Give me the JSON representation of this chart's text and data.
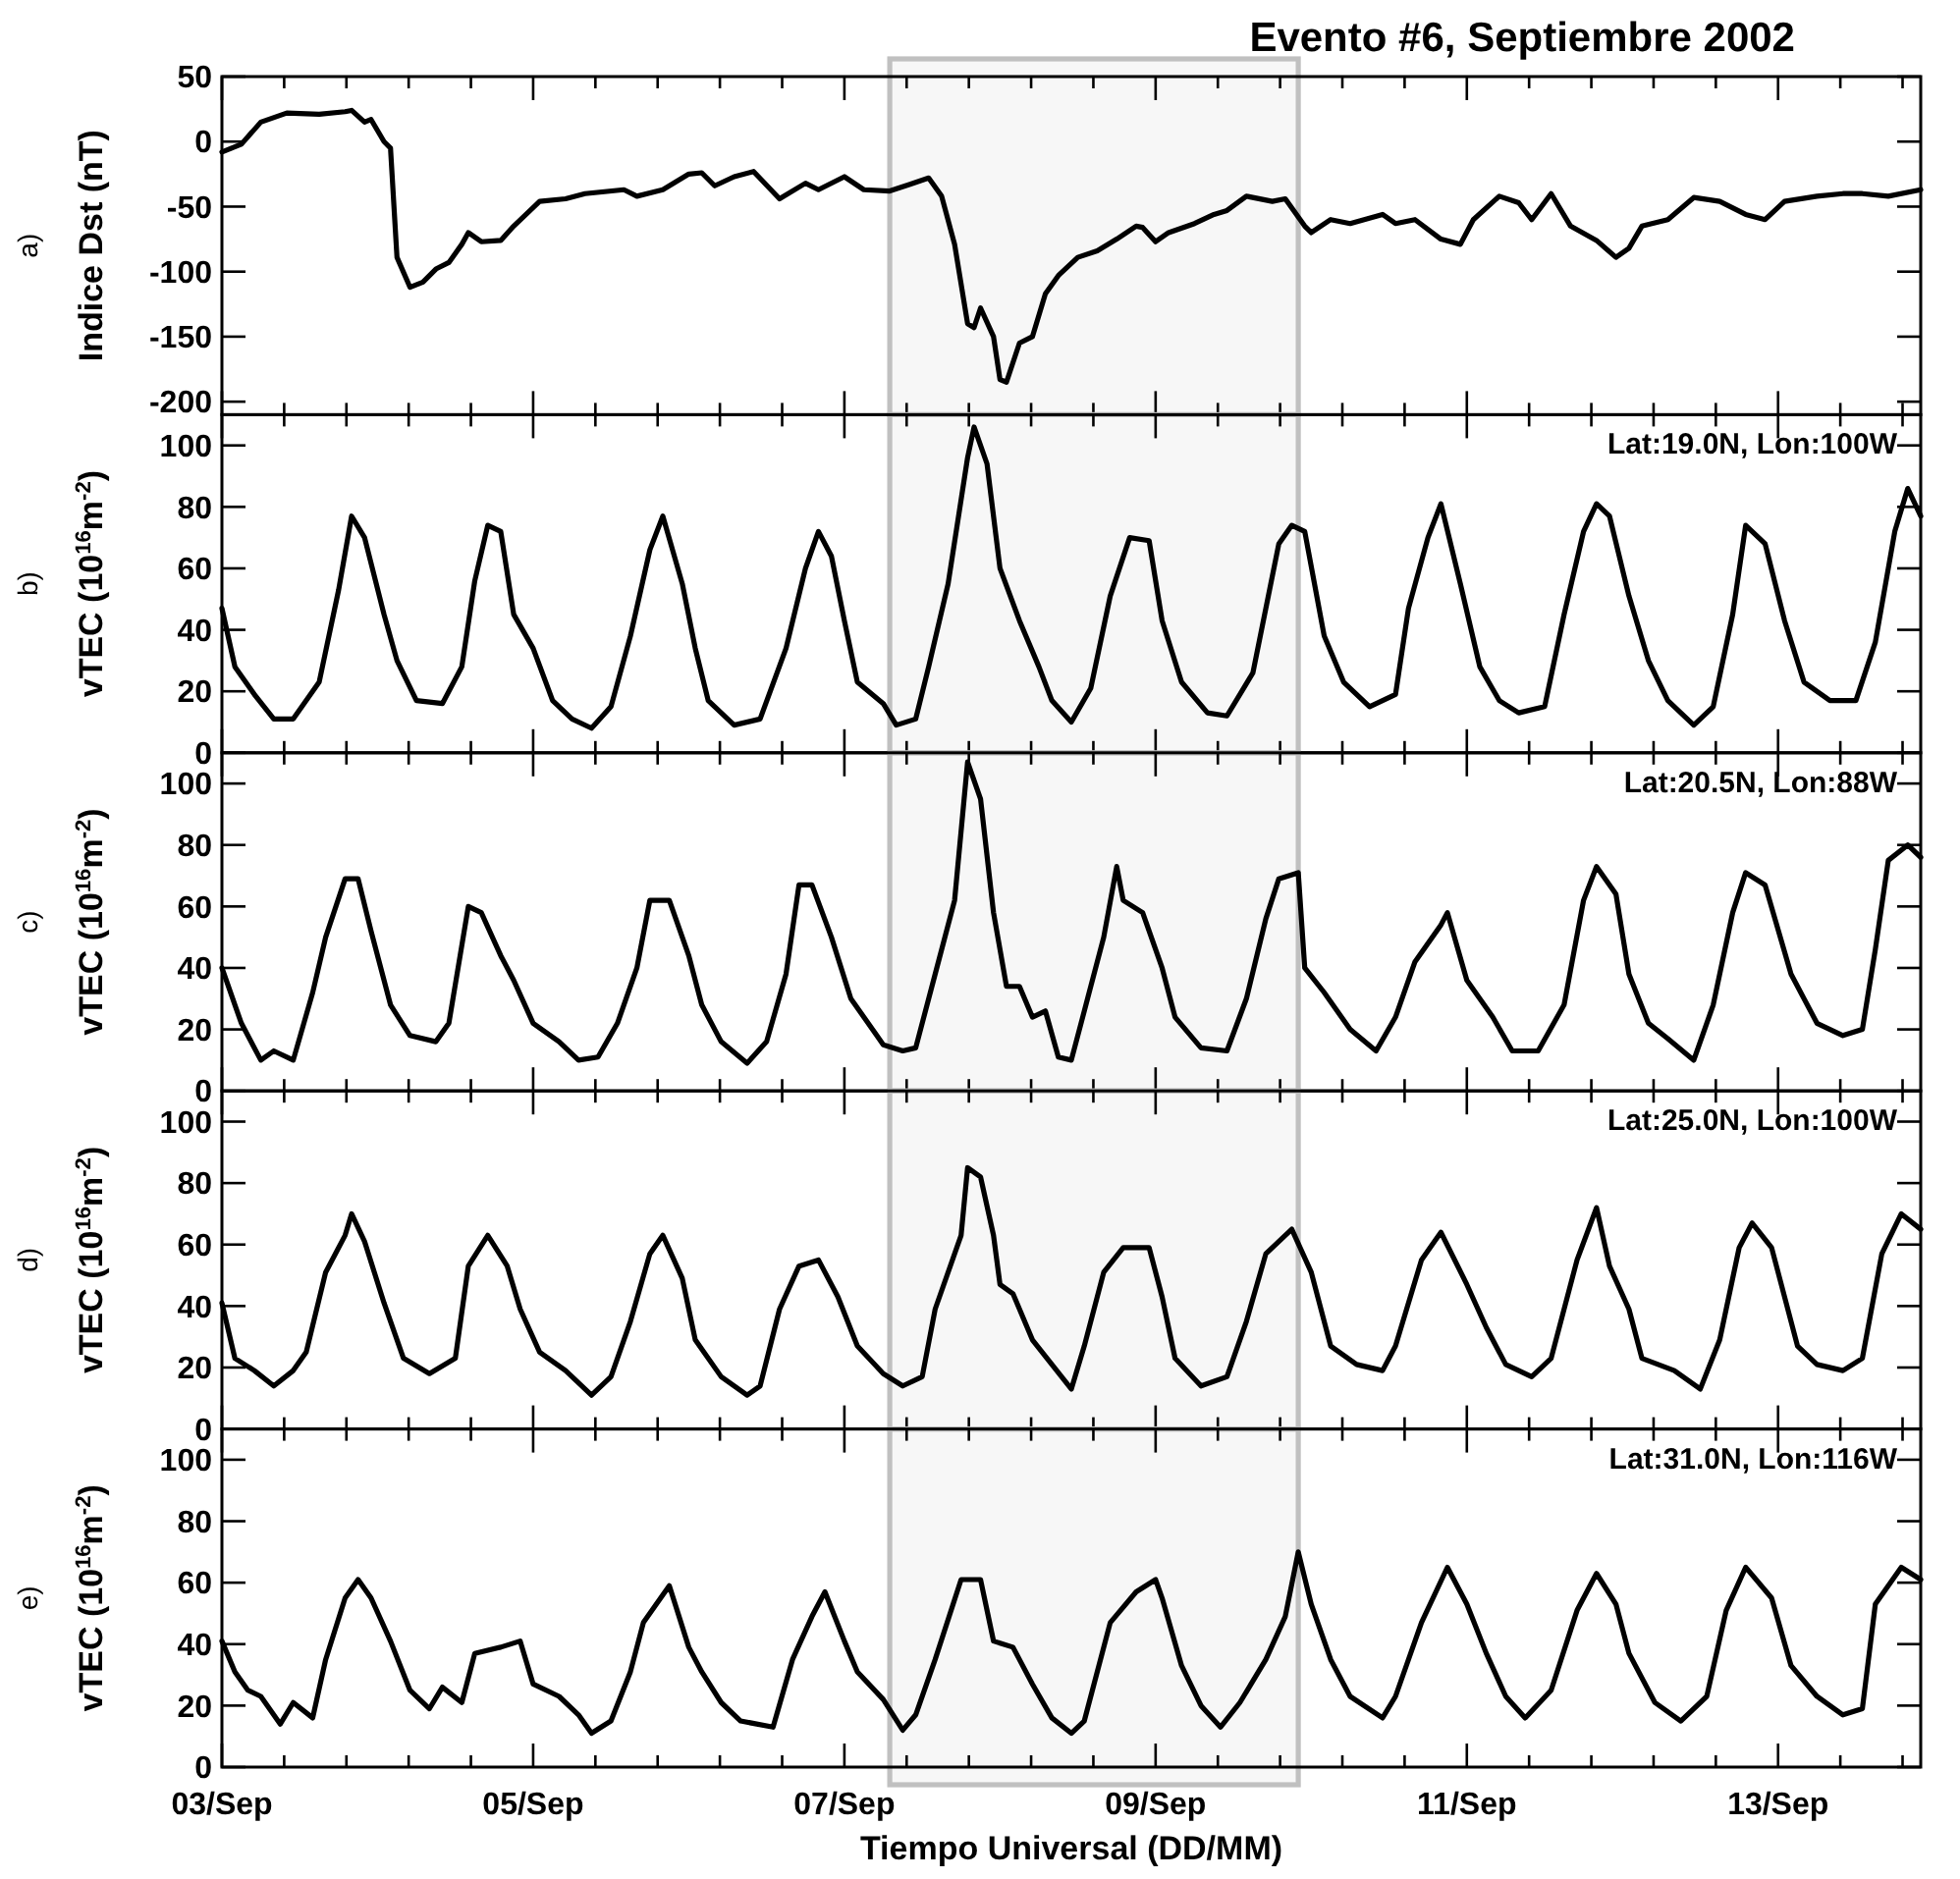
{
  "chart_data": [
    {
      "type": "line",
      "title": "Evento #6, Septiembre 2002",
      "ylabel": "Indice Dst (nT)",
      "annotations": [
        "a)"
      ],
      "tick_labels": "y",
      "xlim": [
        "2002-09-03T00:00",
        "2002-09-13T22:00"
      ],
      "ylim": [
        -210,
        50
      ],
      "yticks": [
        -200,
        -150,
        -100,
        -50,
        0,
        50
      ],
      "xticks": [
        {
          "value": "2002-09-03T00:00",
          "label": null
        },
        {
          "value": "2002-09-03T09:36",
          "label": null
        },
        {
          "value": "2002-09-03T19:12",
          "label": null
        },
        {
          "value": "2002-09-04T04:48",
          "label": null
        },
        {
          "value": "2002-09-04T14:24",
          "label": null
        },
        {
          "value": "2002-09-05T00:00",
          "label": null
        },
        {
          "value": "2002-09-05T09:36",
          "label": null
        },
        {
          "value": "2002-09-05T19:12",
          "label": null
        },
        {
          "value": "2002-09-06T04:48",
          "label": null
        },
        {
          "value": "2002-09-06T14:24",
          "label": null
        },
        {
          "value": "2002-09-07T00:00",
          "label": null
        },
        {
          "value": "2002-09-07T09:36",
          "label": null
        },
        {
          "value": "2002-09-07T19:12",
          "label": null
        },
        {
          "value": "2002-09-08T04:48",
          "label": null
        },
        {
          "value": "2002-09-08T14:24",
          "label": null
        },
        {
          "value": "2002-09-09T00:00",
          "label": null
        },
        {
          "value": "2002-09-09T09:36",
          "label": null
        },
        {
          "value": "2002-09-09T19:12",
          "label": null
        },
        {
          "value": "2002-09-10T04:48",
          "label": null
        },
        {
          "value": "2002-09-10T14:24",
          "label": null
        },
        {
          "value": "2002-09-11T00:00",
          "label": null
        },
        {
          "value": "2002-09-11T09:36",
          "label": null
        },
        {
          "value": "2002-09-11T19:12",
          "label": null
        },
        {
          "value": "2002-09-12T04:48",
          "label": null
        },
        {
          "value": "2002-09-12T14:24",
          "label": null
        },
        {
          "value": "2002-09-13T00:00",
          "label": null
        },
        {
          "value": "2002-09-13T09:36",
          "label": null
        },
        {
          "value": "2002-09-13T19:12",
          "label": null
        }
      ],
      "bands": [
        {
          "axis": "x",
          "from": "2002-09-07T07:00",
          "to": "2002-09-09T22:00",
          "color": "#c0c0c0"
        }
      ],
      "series": [
        {
          "color": "#000000",
          "x": [
            "2002-09-03T00:00",
            "2002-09-03T03:00",
            "2002-09-03T06:00",
            "2002-09-03T10:00",
            "2002-09-03T15:00",
            "2002-09-03T19:00",
            "2002-09-03T20:00",
            "2002-09-03T22:00",
            "2002-09-03T23:00",
            "2002-09-04T01:00",
            "2002-09-04T02:00",
            "2002-09-04T03:00",
            "2002-09-04T05:00",
            "2002-09-04T07:00",
            "2002-09-04T09:00",
            "2002-09-04T11:00",
            "2002-09-04T13:00",
            "2002-09-04T14:00",
            "2002-09-04T16:00",
            "2002-09-04T19:00",
            "2002-09-04T21:00",
            "2002-09-05T01:00",
            "2002-09-05T05:00",
            "2002-09-05T08:00",
            "2002-09-05T14:00",
            "2002-09-05T16:00",
            "2002-09-05T20:00",
            "2002-09-06T00:00",
            "2002-09-06T02:00",
            "2002-09-06T04:00",
            "2002-09-06T07:00",
            "2002-09-06T10:00",
            "2002-09-06T14:00",
            "2002-09-06T18:00",
            "2002-09-06T20:00",
            "2002-09-07T00:00",
            "2002-09-07T03:00",
            "2002-09-07T07:00",
            "2002-09-07T10:00",
            "2002-09-07T13:00",
            "2002-09-07T15:00",
            "2002-09-07T17:00",
            "2002-09-07T19:00",
            "2002-09-07T20:00",
            "2002-09-07T21:00",
            "2002-09-07T23:00",
            "2002-09-08T00:00",
            "2002-09-08T01:00",
            "2002-09-08T03:00",
            "2002-09-08T05:00",
            "2002-09-08T07:00",
            "2002-09-08T09:00",
            "2002-09-08T12:00",
            "2002-09-08T15:00",
            "2002-09-08T18:00",
            "2002-09-08T21:00",
            "2002-09-08T22:00",
            "2002-09-09T00:00",
            "2002-09-09T02:00",
            "2002-09-09T06:00",
            "2002-09-09T09:00",
            "2002-09-09T11:00",
            "2002-09-09T14:00",
            "2002-09-09T18:00",
            "2002-09-09T20:00",
            "2002-09-09T23:00",
            "2002-09-10T00:00",
            "2002-09-10T03:00",
            "2002-09-10T06:00",
            "2002-09-10T11:00",
            "2002-09-10T13:00",
            "2002-09-10T16:00",
            "2002-09-10T20:00",
            "2002-09-10T23:00",
            "2002-09-11T01:00",
            "2002-09-11T05:00",
            "2002-09-11T08:00",
            "2002-09-11T10:00",
            "2002-09-11T13:00",
            "2002-09-11T16:00",
            "2002-09-11T20:00",
            "2002-09-11T23:00",
            "2002-09-12T01:00",
            "2002-09-12T03:00",
            "2002-09-12T07:00",
            "2002-09-12T11:00",
            "2002-09-12T15:00",
            "2002-09-12T19:00",
            "2002-09-12T22:00",
            "2002-09-13T01:00",
            "2002-09-13T06:00",
            "2002-09-13T10:00",
            "2002-09-13T13:00",
            "2002-09-13T17:00",
            "2002-09-13T22:00"
          ],
          "values": [
            -8,
            -2,
            15,
            22,
            21,
            23,
            24,
            15,
            17,
            0,
            -5,
            -89,
            -112,
            -108,
            -98,
            -93,
            -79,
            -70,
            -77,
            -76,
            -65,
            -46,
            -44,
            -40,
            -37,
            -42,
            -37,
            -25,
            -24,
            -34,
            -27,
            -23,
            -44,
            -32,
            -37,
            -27,
            -37,
            -38,
            -33,
            -28,
            -42,
            -79,
            -140,
            -143,
            -128,
            -150,
            -183,
            -185,
            -155,
            -150,
            -117,
            -103,
            -89,
            -84,
            -75,
            -65,
            -66,
            -77,
            -70,
            -63,
            -56,
            -53,
            -42,
            -46,
            -44,
            -65,
            -70,
            -60,
            -63,
            -56,
            -63,
            -60,
            -75,
            -79,
            -60,
            -42,
            -47,
            -60,
            -40,
            -65,
            -76,
            -89,
            -82,
            -65,
            -60,
            -43,
            -46,
            -56,
            -60,
            -46,
            -42,
            -40,
            -40,
            -42,
            -37
          ]
        }
      ]
    },
    {
      "type": "line",
      "ylabel": "vTEC (10$^{16}$m$^{-2}$)",
      "annotations": [
        "b)",
        "Lat:19.0N, Lon:100W"
      ],
      "tick_labels": "y",
      "xlim": [
        "2002-09-03T00:00",
        "2002-09-13T22:00"
      ],
      "ylim": [
        0,
        110
      ],
      "yticks": [
        0,
        20,
        40,
        60,
        80,
        100
      ],
      "xticks": [
        {
          "value": "2002-09-03T00:00",
          "label": null
        },
        {
          "value": "2002-09-03T09:36",
          "label": null
        },
        {
          "value": "2002-09-03T19:12",
          "label": null
        },
        {
          "value": "2002-09-04T04:48",
          "label": null
        },
        {
          "value": "2002-09-04T14:24",
          "label": null
        },
        {
          "value": "2002-09-05T00:00",
          "label": null
        },
        {
          "value": "2002-09-05T09:36",
          "label": null
        },
        {
          "value": "2002-09-05T19:12",
          "label": null
        },
        {
          "value": "2002-09-06T04:48",
          "label": null
        },
        {
          "value": "2002-09-06T14:24",
          "label": null
        },
        {
          "value": "2002-09-07T00:00",
          "label": null
        },
        {
          "value": "2002-09-07T09:36",
          "label": null
        },
        {
          "value": "2002-09-07T19:12",
          "label": null
        },
        {
          "value": "2002-09-08T04:48",
          "label": null
        },
        {
          "value": "2002-09-08T14:24",
          "label": null
        },
        {
          "value": "2002-09-09T00:00",
          "label": null
        },
        {
          "value": "2002-09-09T09:36",
          "label": null
        },
        {
          "value": "2002-09-09T19:12",
          "label": null
        },
        {
          "value": "2002-09-10T04:48",
          "label": null
        },
        {
          "value": "2002-09-10T14:24",
          "label": null
        },
        {
          "value": "2002-09-11T00:00",
          "label": null
        },
        {
          "value": "2002-09-11T09:36",
          "label": null
        },
        {
          "value": "2002-09-11T19:12",
          "label": null
        },
        {
          "value": "2002-09-12T04:48",
          "label": null
        },
        {
          "value": "2002-09-12T14:24",
          "label": null
        },
        {
          "value": "2002-09-13T00:00",
          "label": null
        },
        {
          "value": "2002-09-13T09:36",
          "label": null
        },
        {
          "value": "2002-09-13T19:12",
          "label": null
        }
      ],
      "bands": [
        {
          "axis": "x",
          "from": "2002-09-07T07:00",
          "to": "2002-09-09T22:00",
          "color": "#c0c0c0"
        }
      ],
      "series": [
        {
          "color": "#000000",
          "x": [
            "2002-09-03T00:00",
            "2002-09-03T02:00",
            "2002-09-03T05:00",
            "2002-09-03T08:00",
            "2002-09-03T11:00",
            "2002-09-03T15:00",
            "2002-09-03T18:00",
            "2002-09-03T20:00",
            "2002-09-03T22:00",
            "2002-09-04T01:00",
            "2002-09-04T03:00",
            "2002-09-04T06:00",
            "2002-09-04T10:00",
            "2002-09-04T13:00",
            "2002-09-04T15:00",
            "2002-09-04T17:00",
            "2002-09-04T19:00",
            "2002-09-04T21:00",
            "2002-09-05T00:00",
            "2002-09-05T03:00",
            "2002-09-05T06:00",
            "2002-09-05T09:00",
            "2002-09-05T12:00",
            "2002-09-05T15:00",
            "2002-09-05T18:00",
            "2002-09-05T20:00",
            "2002-09-05T23:00",
            "2002-09-06T01:00",
            "2002-09-06T03:00",
            "2002-09-06T07:00",
            "2002-09-06T11:00",
            "2002-09-06T15:00",
            "2002-09-06T18:00",
            "2002-09-06T20:00",
            "2002-09-06T22:00",
            "2002-09-07T00:00",
            "2002-09-07T02:00",
            "2002-09-07T06:00",
            "2002-09-07T08:00",
            "2002-09-07T11:00",
            "2002-09-07T13:00",
            "2002-09-07T16:00",
            "2002-09-07T19:00",
            "2002-09-07T20:00",
            "2002-09-07T22:00",
            "2002-09-08T00:00",
            "2002-09-08T03:00",
            "2002-09-08T06:00",
            "2002-09-08T08:00",
            "2002-09-08T11:00",
            "2002-09-08T14:00",
            "2002-09-08T17:00",
            "2002-09-08T20:00",
            "2002-09-08T23:00",
            "2002-09-09T01:00",
            "2002-09-09T04:00",
            "2002-09-09T08:00",
            "2002-09-09T11:00",
            "2002-09-09T15:00",
            "2002-09-09T19:00",
            "2002-09-09T21:00",
            "2002-09-09T23:00",
            "2002-09-10T02:00",
            "2002-09-10T05:00",
            "2002-09-10T09:00",
            "2002-09-10T13:00",
            "2002-09-10T15:00",
            "2002-09-10T18:00",
            "2002-09-10T20:00",
            "2002-09-10T23:00",
            "2002-09-11T02:00",
            "2002-09-11T05:00",
            "2002-09-11T08:00",
            "2002-09-11T12:00",
            "2002-09-11T15:00",
            "2002-09-11T18:00",
            "2002-09-11T20:00",
            "2002-09-11T22:00",
            "2002-09-12T01:00",
            "2002-09-12T04:00",
            "2002-09-12T07:00",
            "2002-09-12T11:00",
            "2002-09-12T14:00",
            "2002-09-12T17:00",
            "2002-09-12T19:00",
            "2002-09-12T22:00",
            "2002-09-13T01:00",
            "2002-09-13T04:00",
            "2002-09-13T08:00",
            "2002-09-13T12:00",
            "2002-09-13T15:00",
            "2002-09-13T18:00",
            "2002-09-13T20:00",
            "2002-09-13T22:00"
          ],
          "values": [
            47,
            28,
            19,
            11,
            11,
            23,
            53,
            77,
            70,
            45,
            30,
            17,
            16,
            28,
            56,
            74,
            72,
            45,
            34,
            17,
            11,
            8,
            15,
            38,
            66,
            77,
            55,
            34,
            17,
            9,
            11,
            34,
            60,
            72,
            64,
            43,
            23,
            16,
            9,
            11,
            28,
            55,
            96,
            106,
            94,
            60,
            43,
            28,
            17,
            10,
            21,
            51,
            70,
            69,
            43,
            23,
            13,
            12,
            26,
            68,
            74,
            72,
            38,
            23,
            15,
            19,
            47,
            70,
            81,
            55,
            28,
            17,
            13,
            15,
            45,
            72,
            81,
            77,
            51,
            30,
            17,
            9,
            15,
            45,
            74,
            68,
            43,
            23,
            17,
            17,
            36,
            72,
            86,
            77
          ]
        }
      ]
    },
    {
      "type": "line",
      "ylabel": "vTEC (10$^{16}$m$^{-2}$)",
      "annotations": [
        "c)",
        "Lat:20.5N, Lon:88W"
      ],
      "tick_labels": "y",
      "xlim": [
        "2002-09-03T00:00",
        "2002-09-13T22:00"
      ],
      "ylim": [
        0,
        110
      ],
      "yticks": [
        0,
        20,
        40,
        60,
        80,
        100
      ],
      "xticks": [
        {
          "value": "2002-09-03T00:00",
          "label": null
        },
        {
          "value": "2002-09-03T09:36",
          "label": null
        },
        {
          "value": "2002-09-03T19:12",
          "label": null
        },
        {
          "value": "2002-09-04T04:48",
          "label": null
        },
        {
          "value": "2002-09-04T14:24",
          "label": null
        },
        {
          "value": "2002-09-05T00:00",
          "label": null
        },
        {
          "value": "2002-09-05T09:36",
          "label": null
        },
        {
          "value": "2002-09-05T19:12",
          "label": null
        },
        {
          "value": "2002-09-06T04:48",
          "label": null
        },
        {
          "value": "2002-09-06T14:24",
          "label": null
        },
        {
          "value": "2002-09-07T00:00",
          "label": null
        },
        {
          "value": "2002-09-07T09:36",
          "label": null
        },
        {
          "value": "2002-09-07T19:12",
          "label": null
        },
        {
          "value": "2002-09-08T04:48",
          "label": null
        },
        {
          "value": "2002-09-08T14:24",
          "label": null
        },
        {
          "value": "2002-09-09T00:00",
          "label": null
        },
        {
          "value": "2002-09-09T09:36",
          "label": null
        },
        {
          "value": "2002-09-09T19:12",
          "label": null
        },
        {
          "value": "2002-09-10T04:48",
          "label": null
        },
        {
          "value": "2002-09-10T14:24",
          "label": null
        },
        {
          "value": "2002-09-11T00:00",
          "label": null
        },
        {
          "value": "2002-09-11T09:36",
          "label": null
        },
        {
          "value": "2002-09-11T19:12",
          "label": null
        },
        {
          "value": "2002-09-12T04:48",
          "label": null
        },
        {
          "value": "2002-09-12T14:24",
          "label": null
        },
        {
          "value": "2002-09-13T00:00",
          "label": null
        },
        {
          "value": "2002-09-13T09:36",
          "label": null
        },
        {
          "value": "2002-09-13T19:12",
          "label": null
        }
      ],
      "bands": [
        {
          "axis": "x",
          "from": "2002-09-07T07:00",
          "to": "2002-09-09T22:00",
          "color": "#c0c0c0"
        }
      ],
      "series": [
        {
          "color": "#000000",
          "x": [
            "2002-09-03T00:00",
            "2002-09-03T02:00",
            "2002-09-03T03:00",
            "2002-09-03T06:00",
            "2002-09-03T08:00",
            "2002-09-03T11:00",
            "2002-09-03T14:00",
            "2002-09-03T16:00",
            "2002-09-03T19:00",
            "2002-09-03T21:00",
            "2002-09-03T23:00",
            "2002-09-04T02:00",
            "2002-09-04T05:00",
            "2002-09-04T09:00",
            "2002-09-04T11:00",
            "2002-09-04T14:00",
            "2002-09-04T16:00",
            "2002-09-04T19:00",
            "2002-09-04T21:00",
            "2002-09-05T00:00",
            "2002-09-05T04:00",
            "2002-09-05T07:00",
            "2002-09-05T10:00",
            "2002-09-05T13:00",
            "2002-09-05T16:00",
            "2002-09-05T18:00",
            "2002-09-05T21:00",
            "2002-09-06T00:00",
            "2002-09-06T02:00",
            "2002-09-06T05:00",
            "2002-09-06T09:00",
            "2002-09-06T12:00",
            "2002-09-06T15:00",
            "2002-09-06T17:00",
            "2002-09-06T19:00",
            "2002-09-06T22:00",
            "2002-09-07T01:00",
            "2002-09-07T05:00",
            "2002-09-07T06:00",
            "2002-09-07T09:00",
            "2002-09-07T11:00",
            "2002-09-07T14:00",
            "2002-09-07T17:00",
            "2002-09-07T19:00",
            "2002-09-07T21:00",
            "2002-09-07T23:00",
            "2002-09-08T01:00",
            "2002-09-08T03:00",
            "2002-09-08T05:00",
            "2002-09-08T07:00",
            "2002-09-08T09:00",
            "2002-09-08T11:00",
            "2002-09-08T13:00",
            "2002-09-08T16:00",
            "2002-09-08T18:00",
            "2002-09-08T19:00",
            "2002-09-08T22:00",
            "2002-09-09T01:00",
            "2002-09-09T03:00",
            "2002-09-09T07:00",
            "2002-09-09T11:00",
            "2002-09-09T14:00",
            "2002-09-09T17:00",
            "2002-09-09T19:00",
            "2002-09-09T22:00",
            "2002-09-09T23:00",
            "2002-09-10T02:00",
            "2002-09-10T06:00",
            "2002-09-10T10:00",
            "2002-09-10T13:00",
            "2002-09-10T16:00",
            "2002-09-10T20:00",
            "2002-09-10T21:00",
            "2002-09-11T00:00",
            "2002-09-11T04:00",
            "2002-09-11T07:00",
            "2002-09-11T11:00",
            "2002-09-11T15:00",
            "2002-09-11T18:00",
            "2002-09-11T20:00",
            "2002-09-11T23:00",
            "2002-09-12T01:00",
            "2002-09-12T04:00",
            "2002-09-12T07:00",
            "2002-09-12T11:00",
            "2002-09-12T14:00",
            "2002-09-12T17:00",
            "2002-09-12T19:00",
            "2002-09-12T22:00",
            "2002-09-13T02:00",
            "2002-09-13T06:00",
            "2002-09-13T10:00",
            "2002-09-13T13:00",
            "2002-09-13T15:00",
            "2002-09-13T17:00",
            "2002-09-13T20:00",
            "2002-09-13T22:00"
          ],
          "values": [
            40,
            28,
            22,
            10,
            13,
            10,
            32,
            50,
            69,
            69,
            52,
            28,
            18,
            16,
            22,
            60,
            58,
            44,
            36,
            22,
            16,
            10,
            11,
            22,
            40,
            62,
            62,
            44,
            28,
            16,
            9,
            16,
            38,
            67,
            67,
            50,
            30,
            18,
            15,
            13,
            14,
            38,
            62,
            107,
            95,
            58,
            34,
            34,
            24,
            26,
            11,
            10,
            26,
            50,
            73,
            62,
            58,
            40,
            24,
            14,
            13,
            30,
            56,
            69,
            71,
            40,
            32,
            20,
            13,
            24,
            42,
            54,
            58,
            36,
            24,
            13,
            13,
            28,
            62,
            73,
            64,
            38,
            22,
            17,
            10,
            28,
            58,
            71,
            67,
            38,
            22,
            18,
            20,
            46,
            75,
            80,
            76
          ]
        }
      ]
    },
    {
      "type": "line",
      "ylabel": "vTEC (10$^{16}$m$^{-2}$)",
      "annotations": [
        "d)",
        "Lat:25.0N, Lon:100W"
      ],
      "tick_labels": "y",
      "xlim": [
        "2002-09-03T00:00",
        "2002-09-13T22:00"
      ],
      "ylim": [
        0,
        110
      ],
      "yticks": [
        0,
        20,
        40,
        60,
        80,
        100
      ],
      "xticks": [
        {
          "value": "2002-09-03T00:00",
          "label": null
        },
        {
          "value": "2002-09-03T09:36",
          "label": null
        },
        {
          "value": "2002-09-03T19:12",
          "label": null
        },
        {
          "value": "2002-09-04T04:48",
          "label": null
        },
        {
          "value": "2002-09-04T14:24",
          "label": null
        },
        {
          "value": "2002-09-05T00:00",
          "label": null
        },
        {
          "value": "2002-09-05T09:36",
          "label": null
        },
        {
          "value": "2002-09-05T19:12",
          "label": null
        },
        {
          "value": "2002-09-06T04:48",
          "label": null
        },
        {
          "value": "2002-09-06T14:24",
          "label": null
        },
        {
          "value": "2002-09-07T00:00",
          "label": null
        },
        {
          "value": "2002-09-07T09:36",
          "label": null
        },
        {
          "value": "2002-09-07T19:12",
          "label": null
        },
        {
          "value": "2002-09-08T04:48",
          "label": null
        },
        {
          "value": "2002-09-08T14:24",
          "label": null
        },
        {
          "value": "2002-09-09T00:00",
          "label": null
        },
        {
          "value": "2002-09-09T09:36",
          "label": null
        },
        {
          "value": "2002-09-09T19:12",
          "label": null
        },
        {
          "value": "2002-09-10T04:48",
          "label": null
        },
        {
          "value": "2002-09-10T14:24",
          "label": null
        },
        {
          "value": "2002-09-11T00:00",
          "label": null
        },
        {
          "value": "2002-09-11T09:36",
          "label": null
        },
        {
          "value": "2002-09-11T19:12",
          "label": null
        },
        {
          "value": "2002-09-12T04:48",
          "label": null
        },
        {
          "value": "2002-09-12T14:24",
          "label": null
        },
        {
          "value": "2002-09-13T00:00",
          "label": null
        },
        {
          "value": "2002-09-13T09:36",
          "label": null
        },
        {
          "value": "2002-09-13T19:12",
          "label": null
        }
      ],
      "bands": [
        {
          "axis": "x",
          "from": "2002-09-07T07:00",
          "to": "2002-09-09T22:00",
          "color": "#c0c0c0"
        }
      ],
      "series": [
        {
          "color": "#000000",
          "x": [
            "2002-09-03T00:00",
            "2002-09-03T02:00",
            "2002-09-03T05:00",
            "2002-09-03T08:00",
            "2002-09-03T11:00",
            "2002-09-03T13:00",
            "2002-09-03T16:00",
            "2002-09-03T19:00",
            "2002-09-03T20:00",
            "2002-09-03T22:00",
            "2002-09-04T01:00",
            "2002-09-04T04:00",
            "2002-09-04T08:00",
            "2002-09-04T12:00",
            "2002-09-04T14:00",
            "2002-09-04T17:00",
            "2002-09-04T20:00",
            "2002-09-04T22:00",
            "2002-09-05T01:00",
            "2002-09-05T05:00",
            "2002-09-05T09:00",
            "2002-09-05T12:00",
            "2002-09-05T15:00",
            "2002-09-05T18:00",
            "2002-09-05T20:00",
            "2002-09-05T23:00",
            "2002-09-06T01:00",
            "2002-09-06T05:00",
            "2002-09-06T09:00",
            "2002-09-06T11:00",
            "2002-09-06T14:00",
            "2002-09-06T17:00",
            "2002-09-06T20:00",
            "2002-09-06T23:00",
            "2002-09-07T02:00",
            "2002-09-07T06:00",
            "2002-09-07T09:00",
            "2002-09-07T12:00",
            "2002-09-07T14:00",
            "2002-09-07T18:00",
            "2002-09-07T19:00",
            "2002-09-07T21:00",
            "2002-09-07T23:00",
            "2002-09-08T00:00",
            "2002-09-08T02:00",
            "2002-09-08T05:00",
            "2002-09-08T08:00",
            "2002-09-08T11:00",
            "2002-09-08T13:00",
            "2002-09-08T16:00",
            "2002-09-08T19:00",
            "2002-09-08T23:00",
            "2002-09-09T01:00",
            "2002-09-09T03:00",
            "2002-09-09T07:00",
            "2002-09-09T11:00",
            "2002-09-09T14:00",
            "2002-09-09T17:00",
            "2002-09-09T19:00",
            "2002-09-09T21:00",
            "2002-09-10T00:00",
            "2002-09-10T03:00",
            "2002-09-10T07:00",
            "2002-09-10T11:00",
            "2002-09-10T13:00",
            "2002-09-10T17:00",
            "2002-09-10T20:00",
            "2002-09-11T00:00",
            "2002-09-11T03:00",
            "2002-09-11T06:00",
            "2002-09-11T10:00",
            "2002-09-11T13:00",
            "2002-09-11T17:00",
            "2002-09-11T20:00",
            "2002-09-11T22:00",
            "2002-09-12T01:00",
            "2002-09-12T03:00",
            "2002-09-12T08:00",
            "2002-09-12T12:00",
            "2002-09-12T15:00",
            "2002-09-12T18:00",
            "2002-09-12T20:00",
            "2002-09-12T23:00",
            "2002-09-13T03:00",
            "2002-09-13T06:00",
            "2002-09-13T10:00",
            "2002-09-13T13:00",
            "2002-09-13T16:00",
            "2002-09-13T19:00",
            "2002-09-13T22:00"
          ],
          "values": [
            41,
            23,
            19,
            14,
            19,
            25,
            51,
            63,
            70,
            61,
            41,
            23,
            18,
            23,
            53,
            63,
            53,
            39,
            25,
            19,
            11,
            17,
            35,
            57,
            63,
            49,
            29,
            17,
            11,
            14,
            39,
            53,
            55,
            43,
            27,
            18,
            14,
            17,
            39,
            63,
            85,
            82,
            63,
            47,
            44,
            29,
            21,
            13,
            27,
            51,
            59,
            59,
            43,
            23,
            14,
            17,
            35,
            57,
            61,
            65,
            51,
            27,
            21,
            19,
            27,
            55,
            64,
            47,
            33,
            21,
            17,
            23,
            55,
            72,
            53,
            39,
            23,
            19,
            13,
            29,
            59,
            67,
            59,
            27,
            21,
            19,
            23,
            57,
            70,
            65
          ]
        }
      ]
    },
    {
      "type": "line",
      "ylabel": "vTEC (10$^{16}$m$^{-2}$)",
      "xlabel": "Tiempo Universal (DD/MM)",
      "annotations": [
        "e)",
        "Lat:31.0N, Lon:116W"
      ],
      "xlim": [
        "2002-09-03T00:00",
        "2002-09-13T22:00"
      ],
      "ylim": [
        0,
        110
      ],
      "yticks": [
        0,
        20,
        40,
        60,
        80,
        100
      ],
      "xticks": [
        {
          "value": "2002-09-03T00:00",
          "label": "03/Sep"
        },
        {
          "value": "2002-09-03T09:36",
          "label": null
        },
        {
          "value": "2002-09-03T19:12",
          "label": null
        },
        {
          "value": "2002-09-04T04:48",
          "label": null
        },
        {
          "value": "2002-09-04T14:24",
          "label": null
        },
        {
          "value": "2002-09-05T00:00",
          "label": "05/Sep"
        },
        {
          "value": "2002-09-05T09:36",
          "label": null
        },
        {
          "value": "2002-09-05T19:12",
          "label": null
        },
        {
          "value": "2002-09-06T04:48",
          "label": null
        },
        {
          "value": "2002-09-06T14:24",
          "label": null
        },
        {
          "value": "2002-09-07T00:00",
          "label": "07/Sep"
        },
        {
          "value": "2002-09-07T09:36",
          "label": null
        },
        {
          "value": "2002-09-07T19:12",
          "label": null
        },
        {
          "value": "2002-09-08T04:48",
          "label": null
        },
        {
          "value": "2002-09-08T14:24",
          "label": null
        },
        {
          "value": "2002-09-09T00:00",
          "label": "09/Sep"
        },
        {
          "value": "2002-09-09T09:36",
          "label": null
        },
        {
          "value": "2002-09-09T19:12",
          "label": null
        },
        {
          "value": "2002-09-10T04:48",
          "label": null
        },
        {
          "value": "2002-09-10T14:24",
          "label": null
        },
        {
          "value": "2002-09-11T00:00",
          "label": "11/Sep"
        },
        {
          "value": "2002-09-11T09:36",
          "label": null
        },
        {
          "value": "2002-09-11T19:12",
          "label": null
        },
        {
          "value": "2002-09-12T04:48",
          "label": null
        },
        {
          "value": "2002-09-12T14:24",
          "label": null
        },
        {
          "value": "2002-09-13T00:00",
          "label": "13/Sep"
        },
        {
          "value": "2002-09-13T09:36",
          "label": null
        },
        {
          "value": "2002-09-13T19:12",
          "label": null
        }
      ],
      "bands": [
        {
          "axis": "x",
          "from": "2002-09-07T07:00",
          "to": "2002-09-09T22:00",
          "color": "#c0c0c0"
        }
      ],
      "series": [
        {
          "color": "#000000",
          "x": [
            "2002-09-03T00:00",
            "2002-09-03T02:00",
            "2002-09-03T04:00",
            "2002-09-03T06:00",
            "2002-09-03T09:00",
            "2002-09-03T11:00",
            "2002-09-03T14:00",
            "2002-09-03T16:00",
            "2002-09-03T19:00",
            "2002-09-03T21:00",
            "2002-09-03T23:00",
            "2002-09-04T02:00",
            "2002-09-04T05:00",
            "2002-09-04T08:00",
            "2002-09-04T10:00",
            "2002-09-04T13:00",
            "2002-09-04T15:00",
            "2002-09-04T19:00",
            "2002-09-04T22:00",
            "2002-09-05T00:00",
            "2002-09-05T04:00",
            "2002-09-05T07:00",
            "2002-09-05T09:00",
            "2002-09-05T12:00",
            "2002-09-05T15:00",
            "2002-09-05T17:00",
            "2002-09-05T21:00",
            "2002-09-06T00:00",
            "2002-09-06T02:00",
            "2002-09-06T05:00",
            "2002-09-06T08:00",
            "2002-09-06T13:00",
            "2002-09-06T16:00",
            "2002-09-06T19:00",
            "2002-09-06T21:00",
            "2002-09-07T00:00",
            "2002-09-07T02:00",
            "2002-09-07T06:00",
            "2002-09-07T09:00",
            "2002-09-07T11:00",
            "2002-09-07T14:00",
            "2002-09-07T18:00",
            "2002-09-07T21:00",
            "2002-09-07T23:00",
            "2002-09-08T02:00",
            "2002-09-08T05:00",
            "2002-09-08T08:00",
            "2002-09-08T11:00",
            "2002-09-08T13:00",
            "2002-09-08T17:00",
            "2002-09-08T21:00",
            "2002-09-09T00:00",
            "2002-09-09T01:00",
            "2002-09-09T04:00",
            "2002-09-09T07:00",
            "2002-09-09T10:00",
            "2002-09-09T13:00",
            "2002-09-09T17:00",
            "2002-09-09T20:00",
            "2002-09-09T22:00",
            "2002-09-10T00:00",
            "2002-09-10T03:00",
            "2002-09-10T06:00",
            "2002-09-10T11:00",
            "2002-09-10T13:00",
            "2002-09-10T17:00",
            "2002-09-10T21:00",
            "2002-09-11T00:00",
            "2002-09-11T03:00",
            "2002-09-11T06:00",
            "2002-09-11T09:00",
            "2002-09-11T13:00",
            "2002-09-11T17:00",
            "2002-09-11T20:00",
            "2002-09-11T23:00",
            "2002-09-12T01:00",
            "2002-09-12T05:00",
            "2002-09-12T09:00",
            "2002-09-12T13:00",
            "2002-09-12T16:00",
            "2002-09-12T19:00",
            "2002-09-12T23:00",
            "2002-09-13T02:00",
            "2002-09-13T06:00",
            "2002-09-13T10:00",
            "2002-09-13T13:00",
            "2002-09-13T15:00",
            "2002-09-13T19:00",
            "2002-09-13T22:00"
          ],
          "values": [
            41,
            31,
            25,
            23,
            14,
            21,
            16,
            35,
            55,
            61,
            55,
            41,
            25,
            19,
            26,
            21,
            37,
            39,
            41,
            27,
            23,
            17,
            11,
            15,
            31,
            47,
            59,
            39,
            31,
            21,
            15,
            13,
            35,
            49,
            57,
            41,
            31,
            22,
            12,
            17,
            35,
            61,
            61,
            41,
            39,
            27,
            16,
            11,
            15,
            47,
            57,
            61,
            55,
            33,
            20,
            13,
            21,
            35,
            49,
            70,
            53,
            35,
            23,
            16,
            23,
            47,
            65,
            53,
            37,
            23,
            16,
            25,
            51,
            63,
            53,
            37,
            21,
            15,
            23,
            51,
            65,
            55,
            33,
            23,
            17,
            19,
            53,
            65,
            61
          ]
        }
      ]
    }
  ]
}
